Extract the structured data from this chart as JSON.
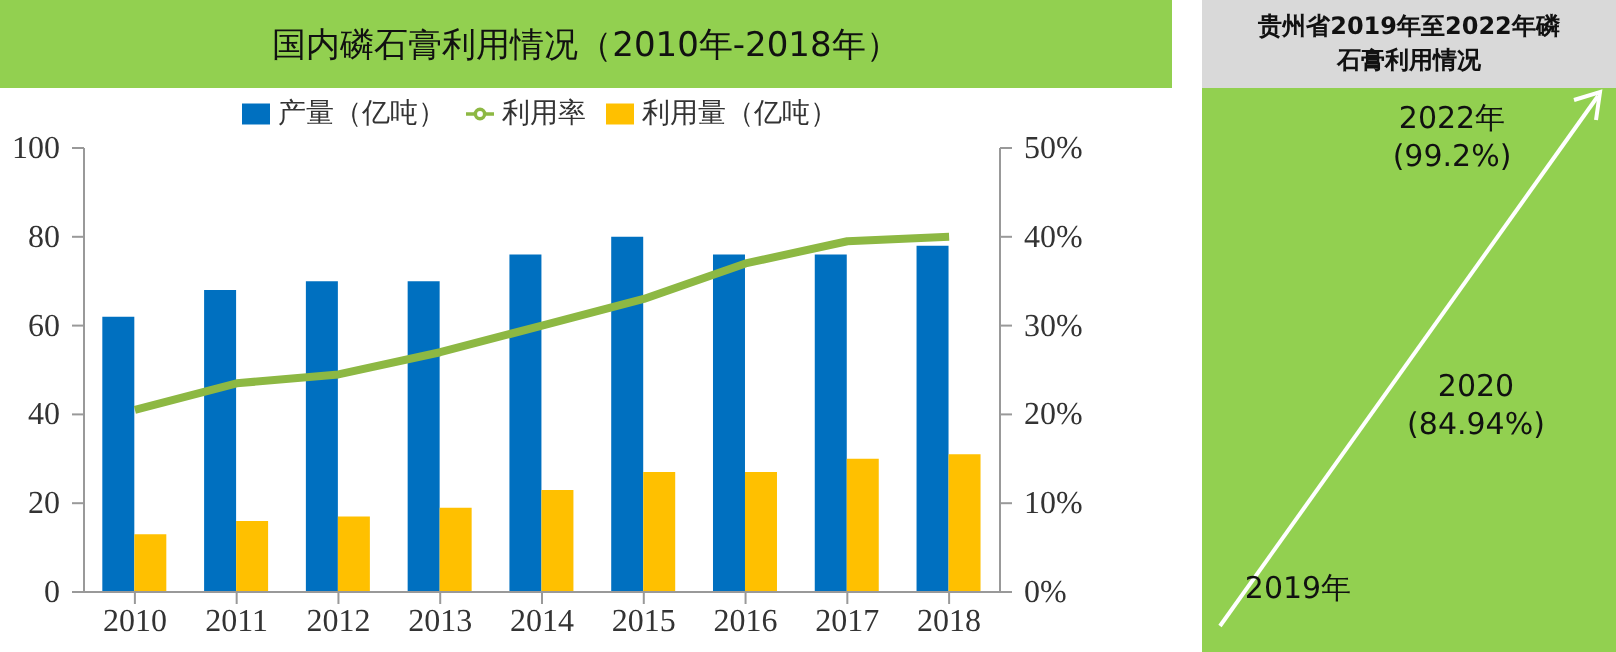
{
  "chart_data": [
    {
      "type": "bar",
      "title": "国内磷石膏利用情况（2010年-2018年）",
      "categories": [
        "2010",
        "2011",
        "2012",
        "2013",
        "2014",
        "2015",
        "2016",
        "2017",
        "2018"
      ],
      "series": [
        {
          "name": "产量（亿吨）",
          "color": "#0070c0",
          "values": [
            62,
            68,
            70,
            70,
            76,
            80,
            76,
            76,
            78
          ]
        },
        {
          "name": "利用量（亿吨）",
          "color": "#ffc000",
          "values": [
            13,
            16,
            17,
            19,
            23,
            27,
            27,
            30,
            31
          ]
        },
        {
          "name": "利用率",
          "type": "line",
          "axis": "y2",
          "color": "#8db843",
          "values": [
            20.5,
            23.5,
            24.5,
            27,
            30,
            33,
            37,
            39.5,
            40
          ]
        }
      ],
      "ylim": [
        0,
        100
      ],
      "yticks": [
        0,
        20,
        40,
        60,
        80,
        100
      ],
      "y2lim": [
        0,
        50
      ],
      "y2ticks": [
        {
          "value": 0,
          "label": "0%"
        },
        {
          "value": 10,
          "label": "10%"
        },
        {
          "value": 20,
          "label": "20%"
        },
        {
          "value": 30,
          "label": "30%"
        },
        {
          "value": 40,
          "label": "40%"
        },
        {
          "value": 50,
          "label": "50%"
        }
      ],
      "legend": "top",
      "grid": false,
      "marker": "none"
    },
    {
      "type": "other",
      "title": "贵州省2019年至2022年磷石膏利用情况",
      "annotations": [
        "2022年",
        "(99.2%)",
        "2020",
        "(84.94%)",
        "2019年"
      ]
    }
  ]
}
